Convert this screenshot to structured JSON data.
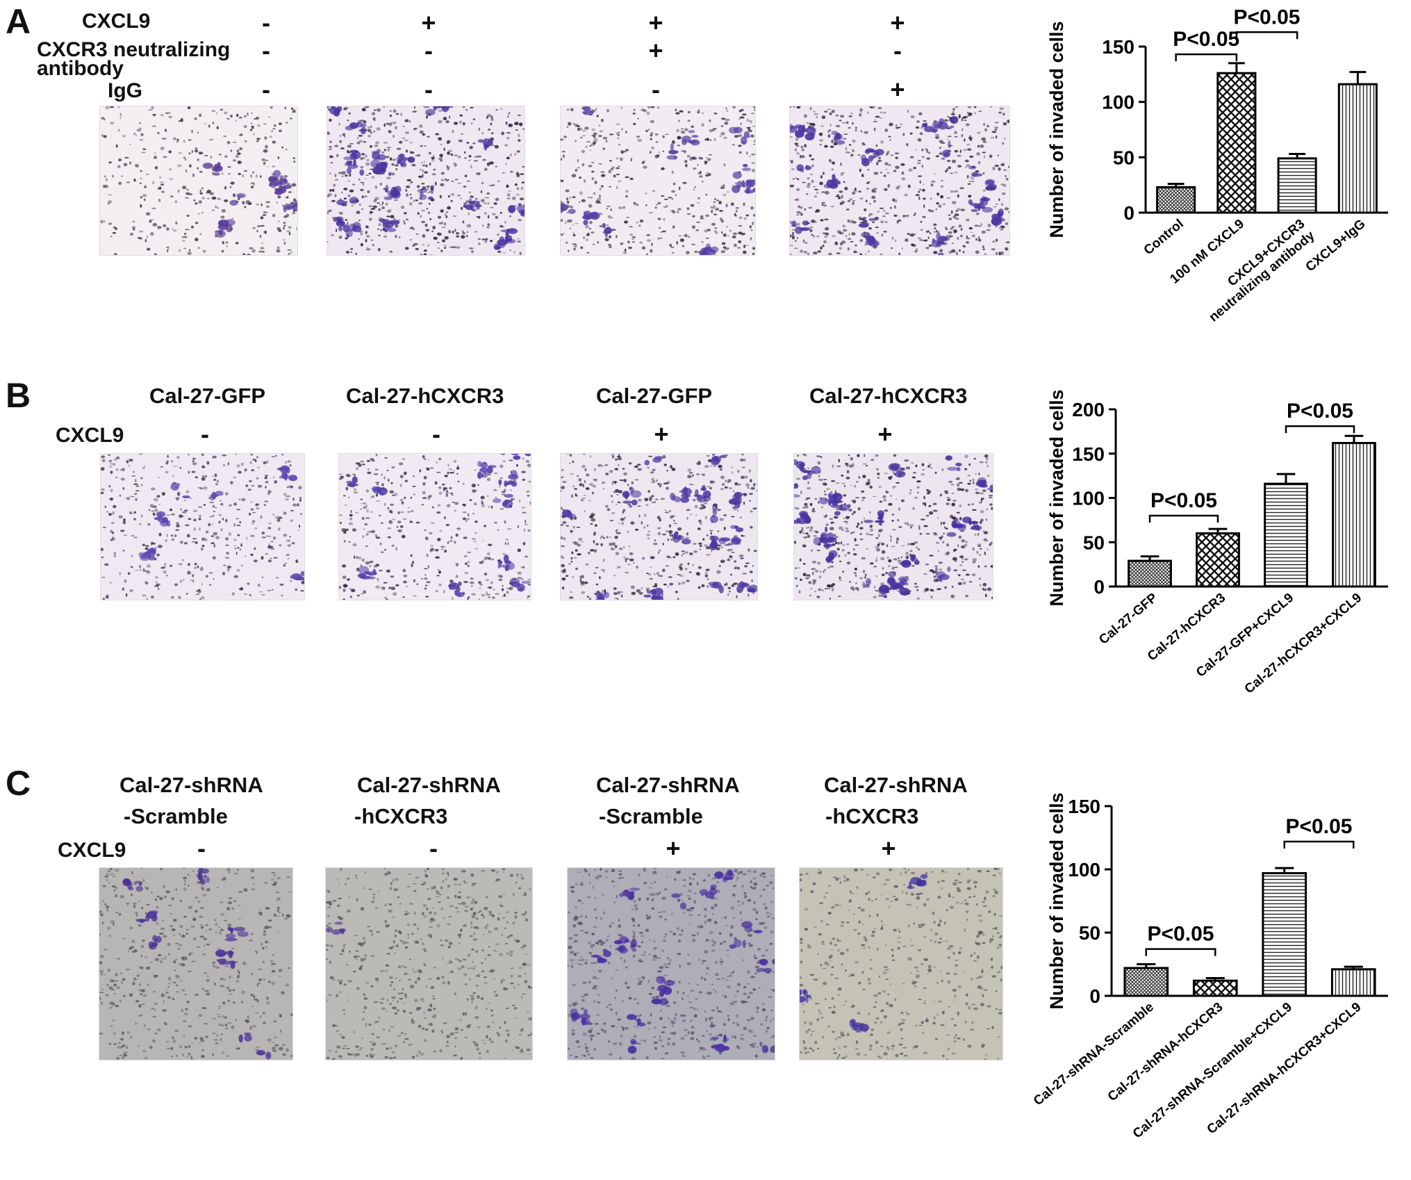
{
  "panel_a": {
    "letter": "A",
    "rows": {
      "cxcl9": {
        "label": "CXCL9",
        "signs": [
          "-",
          "+",
          "+",
          "+"
        ]
      },
      "antibody": {
        "label_line1": "CXCR3 neutralizing",
        "label_line2": "antibody",
        "signs": [
          "-",
          "-",
          "+",
          "-"
        ]
      },
      "igg": {
        "label": "IgG",
        "signs": [
          "-",
          "-",
          "-",
          "+"
        ]
      }
    }
  },
  "panel_b": {
    "letter": "B",
    "group_titles": [
      "Cal-27-GFP",
      "Cal-27-hCXCR3",
      "Cal-27-GFP",
      "Cal-27-hCXCR3"
    ],
    "cxcl9": {
      "label": "CXCL9",
      "signs": [
        "-",
        "-",
        "+",
        "+"
      ]
    }
  },
  "panel_c": {
    "letter": "C",
    "group_titles": [
      {
        "line1": "Cal-27-shRNA",
        "line2": "-Scramble"
      },
      {
        "line1": "Cal-27-shRNA",
        "line2": "-hCXCR3"
      },
      {
        "line1": "Cal-27-shRNA",
        "line2": "-Scramble"
      },
      {
        "line1": "Cal-27-shRNA",
        "line2": "-hCXCR3"
      }
    ],
    "cxcl9": {
      "label": "CXCL9",
      "signs": [
        "-",
        "-",
        "+",
        "+"
      ]
    }
  },
  "micrographs": [
    {
      "panel": "A",
      "density": 0.55,
      "stain": 0.15,
      "bg": "#f3eef2",
      "cell": "#3a3342",
      "purple": "#5a3f9a"
    },
    {
      "panel": "A",
      "density": 0.85,
      "stain": 0.55,
      "bg": "#efe8f0",
      "cell": "#2b2540",
      "purple": "#4b35a0"
    },
    {
      "panel": "A",
      "density": 0.7,
      "stain": 0.3,
      "bg": "#f1ecf1",
      "cell": "#332d40",
      "purple": "#5640a6"
    },
    {
      "panel": "A",
      "density": 0.85,
      "stain": 0.5,
      "bg": "#efe8f0",
      "cell": "#2a2540",
      "purple": "#4a36a0"
    },
    {
      "panel": "B",
      "density": 0.65,
      "stain": 0.15,
      "bg": "#f0e9f2",
      "cell": "#3b3450",
      "purple": "#5b45b0"
    },
    {
      "panel": "B",
      "density": 0.7,
      "stain": 0.25,
      "bg": "#f1eaf2",
      "cell": "#36304a",
      "purple": "#5240a8"
    },
    {
      "panel": "B",
      "density": 0.8,
      "stain": 0.4,
      "bg": "#efe7f0",
      "cell": "#2e2842",
      "purple": "#4b38a2"
    },
    {
      "panel": "B",
      "density": 0.85,
      "stain": 0.55,
      "bg": "#eee6ef",
      "cell": "#2b2540",
      "purple": "#4634a0"
    },
    {
      "panel": "C",
      "density": 0.6,
      "stain": 0.2,
      "bg": "#b8b6b4",
      "cell": "#5a5862",
      "purple": "#4a3098"
    },
    {
      "panel": "C",
      "density": 0.65,
      "stain": 0.02,
      "bg": "#bcbab6",
      "cell": "#5c5a62",
      "purple": "#4a3098"
    },
    {
      "panel": "C",
      "density": 0.7,
      "stain": 0.45,
      "bg": "#aeadb8",
      "cell": "#55536a",
      "purple": "#4a30a0"
    },
    {
      "panel": "C",
      "density": 0.55,
      "stain": 0.08,
      "bg": "#c4c3b6",
      "cell": "#5c5a60",
      "purple": "#4030a0"
    }
  ],
  "chart_data": [
    {
      "type": "bar",
      "panel": "A",
      "ylabel": "Number of invaded cells",
      "ylim": [
        0,
        150
      ],
      "yticks": [
        0,
        50,
        100,
        150
      ],
      "categories": [
        "Control",
        "100 nM CXCL9",
        "CXCL9+CXCR3 neutralizing antibody",
        "CXCL9+IgG"
      ],
      "category_lines": [
        [
          "Control"
        ],
        [
          "100 nM CXCL9"
        ],
        [
          "CXCL9+CXCR3",
          "neutralizing antibody"
        ],
        [
          "CXCL9+IgG"
        ]
      ],
      "values": [
        23,
        126,
        49,
        116
      ],
      "errors": [
        3,
        9,
        4,
        11
      ],
      "patterns": [
        "cross-fine",
        "checker",
        "hlines",
        "vlines"
      ],
      "significance": [
        {
          "from": 0,
          "to": 1,
          "label": "P<0.05",
          "y": 143
        },
        {
          "from": 1,
          "to": 2,
          "label": "P<0.05",
          "y": 163
        }
      ]
    },
    {
      "type": "bar",
      "panel": "B",
      "ylabel": "Number of invaded cells",
      "ylim": [
        0,
        200
      ],
      "yticks": [
        0,
        50,
        100,
        150,
        200
      ],
      "categories": [
        "Cal-27-GFP",
        "Cal-27-hCXCR3",
        "Cal-27-GFP+CXCL9",
        "Cal-27-hCXCR3+CXCL9"
      ],
      "category_lines": [
        [
          "Cal-27-GFP"
        ],
        [
          "Cal-27-hCXCR3"
        ],
        [
          "Cal-27-GFP+CXCL9"
        ],
        [
          "Cal-27-hCXCR3+CXCL9"
        ]
      ],
      "values": [
        29,
        60,
        116,
        162
      ],
      "errors": [
        5,
        5,
        11,
        8
      ],
      "patterns": [
        "cross-fine",
        "checker",
        "hlines",
        "vlines"
      ],
      "significance": [
        {
          "from": 0,
          "to": 1,
          "label": "P<0.05",
          "y": 80
        },
        {
          "from": 2,
          "to": 3,
          "label": "P<0.05",
          "y": 181
        }
      ]
    },
    {
      "type": "bar",
      "panel": "C",
      "ylabel": "Number of invaded cells",
      "ylim": [
        0,
        150
      ],
      "yticks": [
        0,
        50,
        100,
        150
      ],
      "categories": [
        "Cal-27-shRNA-Scramble",
        "Cal-27-shRNA-hCXCR3",
        "Cal-27-shRNA-Scramble+CXCL9",
        "Cal-27-shRNA-hCXCR3+CXCL9"
      ],
      "category_lines": [
        [
          "Cal-27-shRNA-Scramble"
        ],
        [
          "Cal-27-shRNA-hCXCR3"
        ],
        [
          "Cal-27-shRNA-Scramble+CXCL9"
        ],
        [
          "Cal-27-shRNA-hCXCR3+CXCL9"
        ]
      ],
      "values": [
        22,
        12,
        97,
        21
      ],
      "errors": [
        3,
        2,
        4,
        2
      ],
      "patterns": [
        "cross-fine",
        "checker",
        "hlines",
        "vlines"
      ],
      "significance": [
        {
          "from": 0,
          "to": 1,
          "label": "P<0.05",
          "y": 37
        },
        {
          "from": 2,
          "to": 3,
          "label": "P<0.05",
          "y": 122
        }
      ]
    }
  ]
}
